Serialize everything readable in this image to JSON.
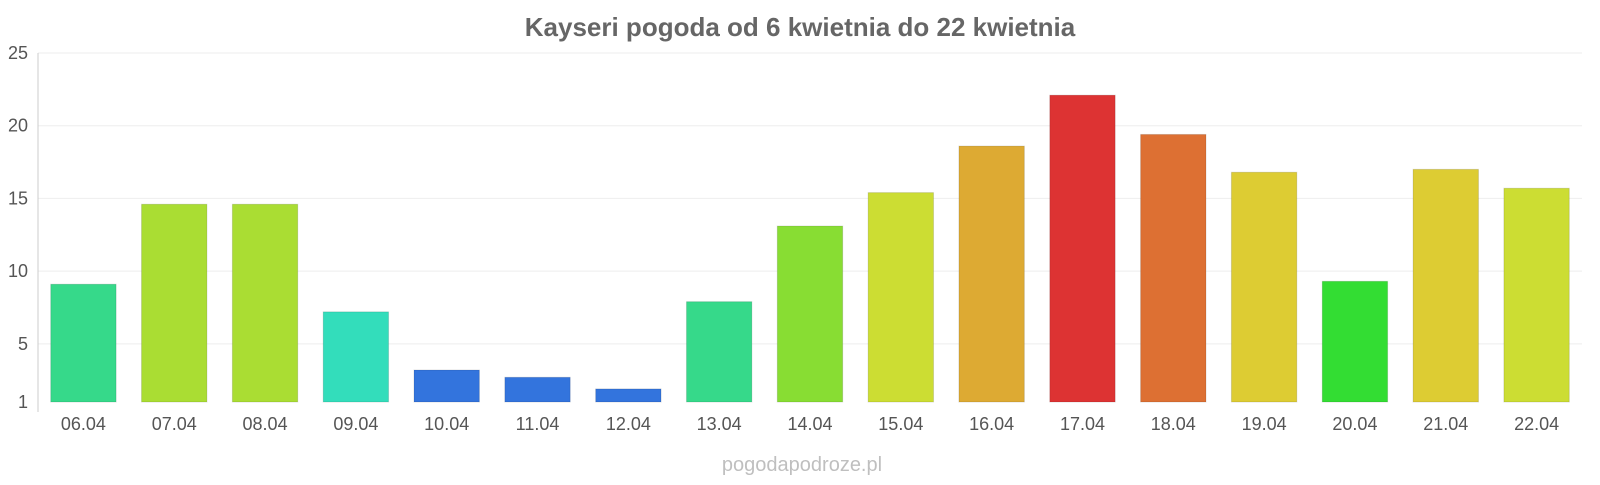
{
  "chart_data": {
    "type": "bar",
    "title": "Kayseri pogoda od 6 kwietnia do 22 kwietnia",
    "xlabel": "",
    "ylabel": "",
    "categories": [
      "06.04",
      "07.04",
      "08.04",
      "09.04",
      "10.04",
      "11.04",
      "12.04",
      "13.04",
      "14.04",
      "15.04",
      "16.04",
      "17.04",
      "18.04",
      "19.04",
      "20.04",
      "21.04",
      "22.04"
    ],
    "values": [
      9.1,
      14.6,
      14.6,
      7.2,
      3.2,
      2.7,
      1.9,
      7.9,
      13.1,
      15.4,
      18.6,
      22.1,
      19.4,
      16.8,
      9.3,
      17.0,
      15.7
    ],
    "colors": [
      "#36d98a",
      "#aadd33",
      "#aadd33",
      "#33ddbb",
      "#3374dd",
      "#3374dd",
      "#3374dd",
      "#36d98a",
      "#88dd33",
      "#ccdd33",
      "#ddaa33",
      "#dd3333",
      "#dd7033",
      "#ddcc33",
      "#33dd33",
      "#ddcc33",
      "#ccdd33"
    ],
    "y_ticks": [
      "1",
      "5",
      "10",
      "15",
      "20",
      "25"
    ],
    "ylim": [
      1,
      25
    ],
    "grid": true
  },
  "watermark": "pogodapodroze.pl"
}
